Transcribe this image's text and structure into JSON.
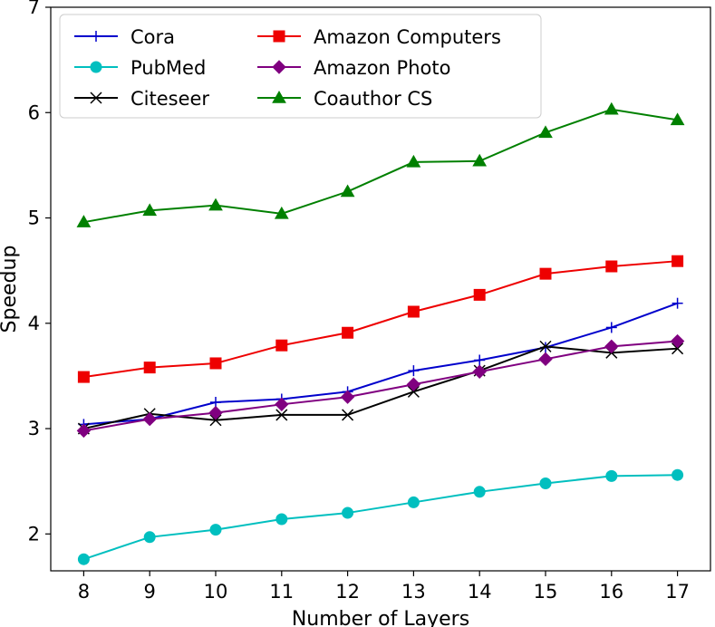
{
  "chart_data": {
    "type": "line",
    "title": "",
    "xlabel": "Number of Layers",
    "ylabel": "Speedup",
    "x": [
      8,
      9,
      10,
      11,
      12,
      13,
      14,
      15,
      16,
      17
    ],
    "xlim": [
      7.5,
      17.5
    ],
    "ylim": [
      1.65,
      7.0
    ],
    "yticks": [
      2,
      3,
      4,
      5,
      6,
      7
    ],
    "grid": false,
    "legend_position": "top-left",
    "series": [
      {
        "name": "Cora",
        "color": "#0000cc",
        "marker": "plus",
        "values": [
          3.04,
          3.09,
          3.25,
          3.28,
          3.35,
          3.55,
          3.65,
          3.77,
          3.96,
          4.19
        ]
      },
      {
        "name": "PubMed",
        "color": "#00bfbf",
        "marker": "circle",
        "values": [
          1.76,
          1.97,
          2.04,
          2.14,
          2.2,
          2.3,
          2.4,
          2.48,
          2.55,
          2.56
        ]
      },
      {
        "name": "Citeseer",
        "color": "#000000",
        "marker": "x",
        "values": [
          3.0,
          3.14,
          3.08,
          3.13,
          3.13,
          3.35,
          3.55,
          3.78,
          3.72,
          3.76
        ]
      },
      {
        "name": "Amazon Computers",
        "color": "#ee0000",
        "marker": "square",
        "values": [
          3.49,
          3.58,
          3.62,
          3.79,
          3.91,
          4.11,
          4.27,
          4.47,
          4.54,
          4.59
        ]
      },
      {
        "name": "Amazon Photo",
        "color": "#800080",
        "marker": "diamond",
        "values": [
          2.98,
          3.09,
          3.15,
          3.23,
          3.3,
          3.42,
          3.54,
          3.66,
          3.78,
          3.83
        ]
      },
      {
        "name": "Coauthor CS",
        "color": "#008000",
        "marker": "triangle",
        "values": [
          4.96,
          5.07,
          5.12,
          5.04,
          5.25,
          5.53,
          5.54,
          5.81,
          6.03,
          5.93
        ]
      }
    ]
  }
}
